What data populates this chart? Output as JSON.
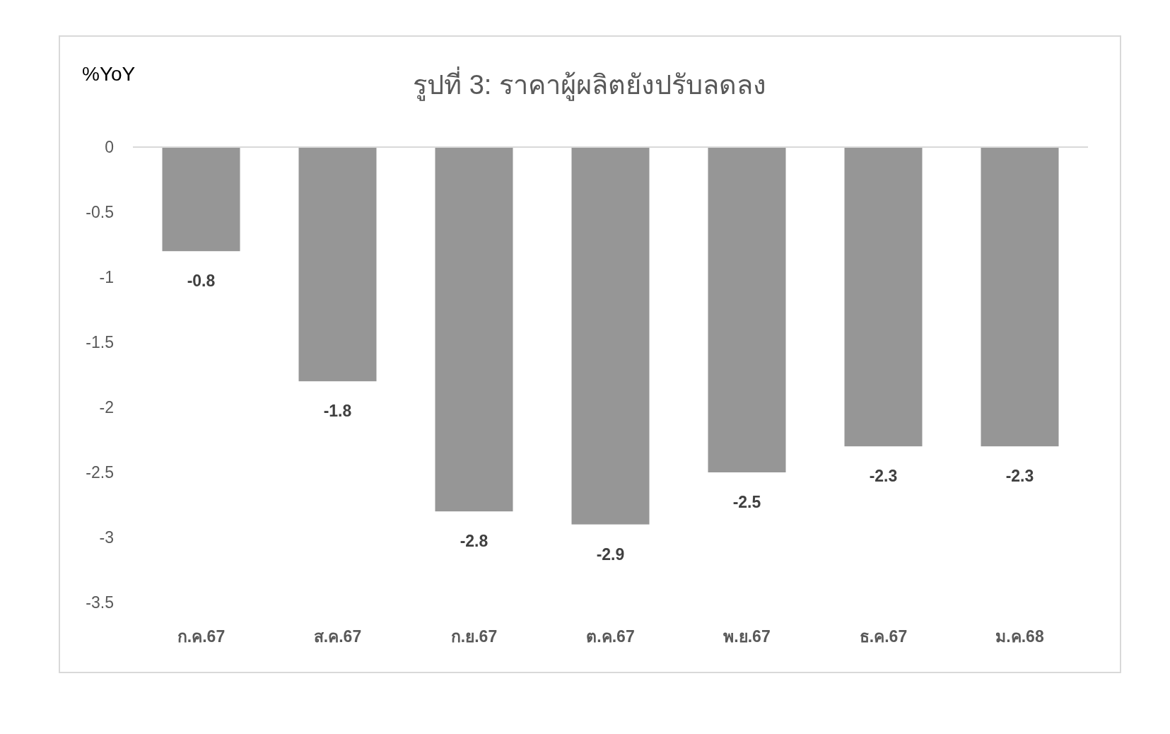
{
  "chart_data": {
    "type": "bar",
    "title": "รูปที่ 3: ราคาผู้ผลิตยังปรับลดลง",
    "ylabel": "%YoY",
    "categories": [
      "ก.ค.67",
      "ส.ค.67",
      "ก.ย.67",
      "ต.ค.67",
      "พ.ย.67",
      "ธ.ค.67",
      "ม.ค.68"
    ],
    "values": [
      -0.8,
      -1.8,
      -2.8,
      -2.9,
      -2.5,
      -2.3,
      -2.3
    ],
    "color": "#969696",
    "ylim": [
      -3.5,
      0
    ],
    "yticks": [
      0,
      -0.5,
      -1,
      -1.5,
      -2,
      -2.5,
      -3,
      -3.5
    ],
    "grid": false,
    "data_labels": true
  }
}
